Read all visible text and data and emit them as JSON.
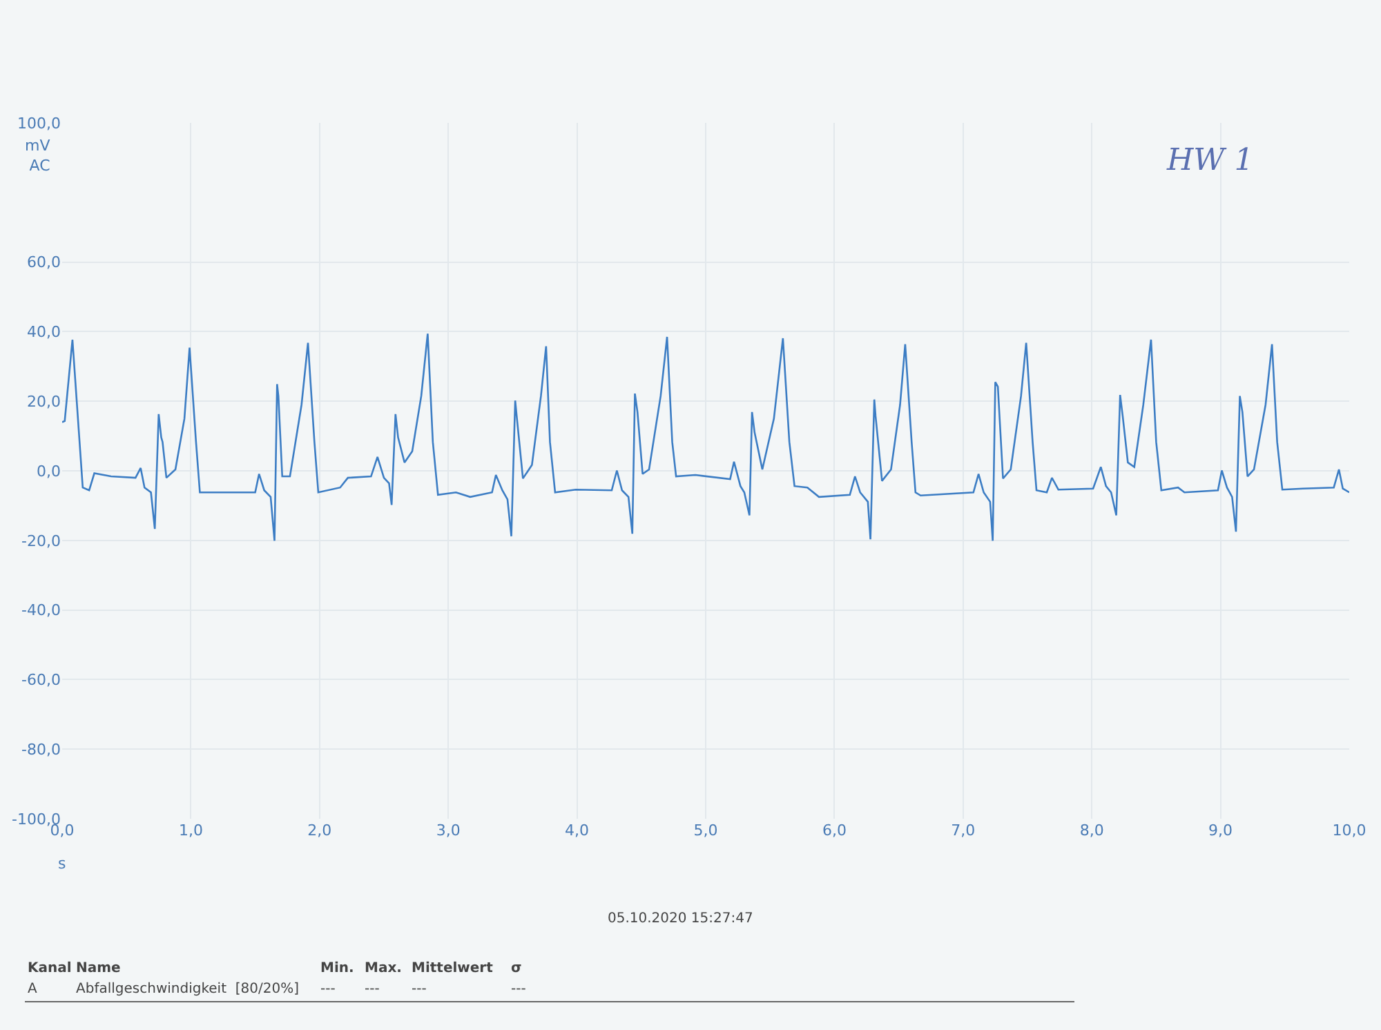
{
  "chart_data": {
    "type": "line",
    "ylabel": "mV\nAC",
    "xlabel": "s",
    "annotations": [
      "05.10.2020 15:27:47",
      "Kanal",
      "Name",
      "Min.",
      "Max.",
      "Mittelwert",
      "σ",
      "A",
      "Abfallgeschwindigkeit  [80/20%]",
      "---",
      "---",
      "---",
      "---",
      "HW 1"
    ],
    "xlim": [
      0,
      10
    ],
    "ylim": [
      -100,
      100
    ],
    "xticks": [
      {
        "value": 0,
        "label": "0,0"
      },
      {
        "value": 1,
        "label": "1,0"
      },
      {
        "value": 2,
        "label": "2,0"
      },
      {
        "value": 3,
        "label": "3,0"
      },
      {
        "value": 4,
        "label": "4,0"
      },
      {
        "value": 5,
        "label": "5,0"
      },
      {
        "value": 6,
        "label": "6,0"
      },
      {
        "value": 7,
        "label": "7,0"
      },
      {
        "value": 8,
        "label": "8,0"
      },
      {
        "value": 9,
        "label": "9,0"
      },
      {
        "value": 10,
        "label": "10,0"
      }
    ],
    "yticks": [
      {
        "value": -100,
        "label": "-100,0"
      },
      {
        "value": -80,
        "label": "-80,0"
      },
      {
        "value": -60,
        "label": "-60,0"
      },
      {
        "value": -40,
        "label": "-40,0"
      },
      {
        "value": -20,
        "label": "-20,0"
      },
      {
        "value": 0,
        "label": "0,0"
      },
      {
        "value": 20,
        "label": "20,0"
      },
      {
        "value": 40,
        "label": "40,0"
      },
      {
        "value": 60,
        "label": "60,0"
      },
      {
        "value": 100,
        "label": "100,0"
      }
    ],
    "grid": true,
    "legend": false,
    "marker": "none",
    "line_style": "solid",
    "series": [
      {
        "color": "#3c7dc4",
        "x": [
          0,
          0.02,
          0.08,
          0.16,
          0.21,
          0.25,
          0.38,
          0.57,
          0.61,
          0.64,
          0.69,
          0.72,
          0.75,
          0.77,
          0.78,
          0.81,
          0.88,
          0.95,
          0.99,
          1.04,
          1.07,
          1.23,
          1.5,
          1.53,
          1.57,
          1.62,
          1.65,
          1.67,
          1.68,
          1.71,
          1.77,
          1.86,
          1.91,
          1.96,
          1.99,
          2.16,
          2.22,
          2.4,
          2.45,
          2.5,
          2.54,
          2.56,
          2.59,
          2.61,
          2.66,
          2.72,
          2.79,
          2.84,
          2.88,
          2.92,
          3.06,
          3.17,
          3.34,
          3.37,
          3.42,
          3.46,
          3.49,
          3.52,
          3.53,
          3.58,
          3.65,
          3.72,
          3.76,
          3.79,
          3.83,
          3.99,
          4.27,
          4.31,
          4.35,
          4.4,
          4.43,
          4.45,
          4.47,
          4.51,
          4.56,
          4.65,
          4.7,
          4.74,
          4.77,
          4.92,
          5.19,
          5.22,
          5.27,
          5.3,
          5.34,
          5.36,
          5.38,
          5.44,
          5.53,
          5.6,
          5.65,
          5.69,
          5.79,
          5.88,
          6.12,
          6.16,
          6.2,
          6.26,
          6.28,
          6.31,
          6.32,
          6.37,
          6.44,
          6.51,
          6.55,
          6.6,
          6.63,
          6.67,
          7.08,
          7.12,
          7.16,
          7.21,
          7.23,
          7.25,
          7.27,
          7.31,
          7.37,
          7.45,
          7.49,
          7.54,
          7.57,
          7.65,
          7.69,
          7.74,
          8.01,
          8.07,
          8.11,
          8.15,
          8.19,
          8.22,
          8.24,
          8.28,
          8.33,
          8.4,
          8.46,
          8.5,
          8.54,
          8.67,
          8.72,
          8.98,
          9.01,
          9.05,
          9.09,
          9.12,
          9.15,
          9.17,
          9.21,
          9.26,
          9.35,
          9.4,
          9.44,
          9.48,
          9.64,
          9.88,
          9.92,
          9.95,
          10
        ],
        "values": [
          14,
          14.3,
          37.7,
          -4.8,
          -5.6,
          -0.7,
          -1.6,
          -2,
          0.8,
          -4.8,
          -6.2,
          -16.7,
          16.3,
          9.6,
          8.3,
          -2,
          0.4,
          15,
          35.4,
          8.3,
          -6.2,
          -6.2,
          -6.2,
          -0.9,
          -5.6,
          -7.5,
          -20.1,
          24.9,
          21.5,
          -1.6,
          -1.6,
          19,
          36.8,
          8.3,
          -6.2,
          -4.8,
          -2,
          -1.6,
          4,
          -2,
          -3.6,
          -9.8,
          16.3,
          9.6,
          2.4,
          5.6,
          21.5,
          39.4,
          8.3,
          -6.9,
          -6.2,
          -7.5,
          -6.2,
          -1.2,
          -5.6,
          -8.2,
          -18.8,
          20.2,
          16.3,
          -2.2,
          1.7,
          21.5,
          35.8,
          8.3,
          -6.2,
          -5.4,
          -5.6,
          0.1,
          -5.6,
          -7.5,
          -18.1,
          22.2,
          16.9,
          -0.9,
          0.4,
          21.5,
          38.5,
          8.3,
          -1.6,
          -1.2,
          -2.4,
          2.6,
          -4.4,
          -6.2,
          -12.8,
          16.9,
          11,
          0.4,
          15,
          38.1,
          8.3,
          -4.4,
          -4.8,
          -7.5,
          -6.9,
          -1.6,
          -6.2,
          -8.9,
          -19.7,
          20.5,
          15.7,
          -2.9,
          0.4,
          18.9,
          36.4,
          8.3,
          -6.2,
          -7.1,
          -6.2,
          -0.9,
          -6.2,
          -8.9,
          -20.1,
          25.5,
          24.2,
          -2.2,
          0.4,
          21.5,
          36.8,
          8.3,
          -5.6,
          -6.2,
          -2,
          -5.4,
          -5.1,
          1.1,
          -4.4,
          -6.2,
          -12.8,
          21.8,
          15.7,
          2.4,
          1.1,
          19,
          37.7,
          8.3,
          -5.6,
          -4.8,
          -6.2,
          -5.6,
          0.1,
          -4.8,
          -7.5,
          -17.5,
          21.5,
          16.9,
          -1.6,
          0.4,
          19,
          36.4,
          8.3,
          -5.4,
          -5.1,
          -4.8,
          0.4,
          -5.1,
          -6.2
        ]
      }
    ]
  }
}
